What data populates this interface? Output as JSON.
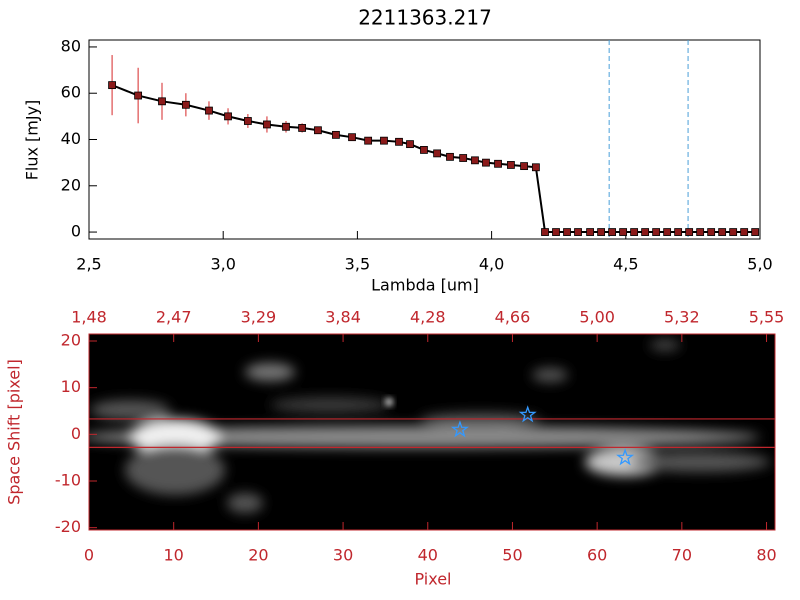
{
  "chart_data": [
    {
      "type": "line",
      "title": "2211363.217",
      "xlabel": "Lambda [um]",
      "ylabel": "Flux [mJy]",
      "x": [
        2.586,
        2.683,
        2.772,
        2.861,
        2.947,
        3.018,
        3.092,
        3.163,
        3.234,
        3.294,
        3.353,
        3.42,
        3.48,
        3.54,
        3.599,
        3.655,
        3.696,
        3.748,
        3.797,
        3.845,
        3.894,
        3.938,
        3.979,
        4.024,
        4.072,
        4.121,
        4.165,
        4.199,
        4.24,
        4.281,
        4.322,
        4.367,
        4.408,
        4.449,
        4.49,
        4.531,
        4.572,
        4.613,
        4.654,
        4.695,
        4.736,
        4.777,
        4.818,
        4.859,
        4.9,
        4.941,
        4.982
      ],
      "series": [
        {
          "color": "#000000",
          "marker_color": "#8b1a1a",
          "error_color": "#d62728",
          "values": [
            63.5,
            59,
            56.5,
            55,
            52.5,
            50,
            48,
            46.5,
            45.5,
            45,
            44,
            42,
            41,
            39.5,
            39.5,
            39,
            38,
            35.5,
            34,
            32.5,
            32,
            31,
            30,
            29.5,
            29,
            28.5,
            28,
            0,
            0,
            0,
            0,
            0,
            0,
            0,
            0,
            0,
            0,
            0,
            0,
            0,
            0,
            0,
            0,
            0,
            0,
            0,
            0
          ],
          "errors": [
            13,
            12,
            8,
            5,
            4,
            3.5,
            3,
            3.5,
            2.5,
            2,
            1,
            1,
            1,
            1,
            1,
            1,
            1,
            1,
            1,
            1,
            1,
            1,
            1,
            1,
            1,
            1,
            1,
            0,
            0,
            0,
            0,
            0,
            0,
            0,
            0,
            0,
            0,
            0,
            0,
            0,
            0,
            0,
            0,
            0,
            0,
            0,
            0
          ]
        }
      ],
      "xlim": [
        2.5,
        5.0
      ],
      "ylim": [
        -3,
        83
      ],
      "xticks": [
        {
          "value": 2.5,
          "label": "2,5"
        },
        {
          "value": 3.0,
          "label": "3,0"
        },
        {
          "value": 3.5,
          "label": "3,5"
        },
        {
          "value": 4.0,
          "label": "4,0"
        },
        {
          "value": 4.5,
          "label": "4,5"
        },
        {
          "value": 5.0,
          "label": "5,0"
        }
      ],
      "yticks": [
        0,
        20,
        40,
        60,
        80
      ],
      "vlines": [
        4.438,
        4.732
      ],
      "vline_color": "#4a9fd8"
    },
    {
      "type": "image",
      "xlabel": "Pixel",
      "ylabel": "Space Shift [pixel]",
      "axis_color": "#c0272d",
      "xlim": [
        0,
        81
      ],
      "ylim": [
        -20.5,
        21.5
      ],
      "xticks": [
        0,
        10,
        20,
        30,
        40,
        50,
        60,
        70,
        80
      ],
      "x2ticks": [
        {
          "value": 0,
          "label": "1,48"
        },
        {
          "value": 10,
          "label": "2,47"
        },
        {
          "value": 20,
          "label": "3,29"
        },
        {
          "value": 30,
          "label": "3,84"
        },
        {
          "value": 40,
          "label": "4,28"
        },
        {
          "value": 50,
          "label": "4,66"
        },
        {
          "value": 60,
          "label": "5,00"
        },
        {
          "value": 70,
          "label": "5,32"
        },
        {
          "value": 80,
          "label": "5,55"
        }
      ],
      "yticks": [
        -20,
        -10,
        0,
        10,
        20
      ],
      "hlines": [
        3.3,
        -2.8
      ],
      "stars": {
        "color": "#3399ff",
        "x": [
          43.8,
          51.8,
          63.3
        ],
        "y": [
          1,
          4.2,
          -5
        ]
      }
    }
  ]
}
